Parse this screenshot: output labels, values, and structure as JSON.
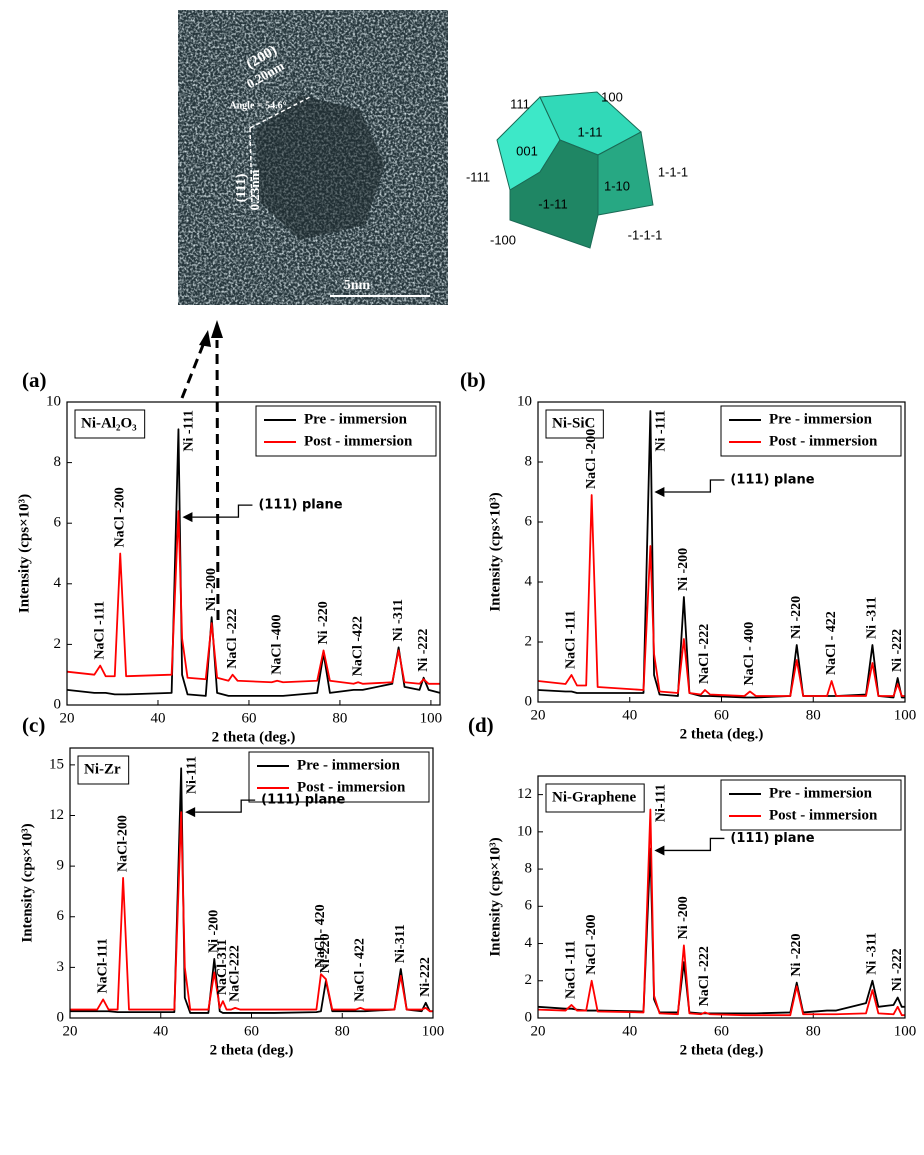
{
  "micrograph": {
    "labels": [
      "(200)",
      "0.20nm",
      "Angle = 54.6°",
      "(111)",
      "0.23nm",
      "5nm"
    ]
  },
  "crystal": {
    "faces": [
      "111",
      "100",
      "001",
      "1-11",
      "-111",
      "1-1-1",
      "-1-11",
      "1-10",
      "-100",
      "-1-1-1"
    ]
  },
  "chart_data": [
    {
      "type": "line",
      "panel": "(a)",
      "sample": "Ni-Al₂O₃",
      "x_label": "2 theta (deg.)",
      "y_label": "Intensity (cps×10³)",
      "legend": "upper right",
      "x": [
        20,
        26,
        27.3,
        28.5,
        30.5,
        31.7,
        33,
        43,
        44.5,
        45.3,
        46.5,
        50.5,
        51.8,
        53,
        55.5,
        56.4,
        57.5,
        65,
        66.2,
        67.5,
        75,
        76.4,
        77.8,
        83,
        84,
        85,
        91.5,
        92.9,
        94.2,
        97.5,
        98.4,
        99.5,
        102
      ],
      "series": [
        {
          "name": "Pre - immersion",
          "color": "#000000",
          "values": [
            0.5,
            0.4,
            0.4,
            0.4,
            0.35,
            0.35,
            0.35,
            0.4,
            9.1,
            1.0,
            0.35,
            0.3,
            2.9,
            0.4,
            0.3,
            0.3,
            0.3,
            0.3,
            0.3,
            0.3,
            0.4,
            1.7,
            0.4,
            0.5,
            0.5,
            0.5,
            0.7,
            1.9,
            0.6,
            0.5,
            0.9,
            0.5,
            0.4
          ]
        },
        {
          "name": "Post - immersion",
          "color": "#ff0000",
          "values": [
            1.1,
            1.0,
            1.3,
            0.95,
            0.95,
            5.0,
            0.95,
            1.0,
            6.4,
            2.2,
            0.9,
            0.85,
            2.7,
            0.9,
            0.8,
            1.0,
            0.8,
            0.75,
            0.8,
            0.75,
            0.8,
            1.8,
            0.8,
            0.7,
            0.75,
            0.7,
            0.75,
            1.8,
            0.75,
            0.7,
            0.85,
            0.7,
            0.7
          ]
        }
      ],
      "xlim": [
        20,
        102
      ],
      "xticks": [
        20,
        40,
        60,
        80,
        100
      ],
      "ylim": [
        0,
        10
      ],
      "yticks": [
        0,
        2,
        4,
        6,
        8,
        10
      ],
      "annotations": [
        {
          "text": "NaCl -111",
          "x": 27.3
        },
        {
          "text": "NaCl -200",
          "x": 31.7
        },
        {
          "text": "Ni -111",
          "x": 44.5
        },
        {
          "text": "Ni -200",
          "x": 51.8
        },
        {
          "text": "NaCl -222",
          "x": 56.4
        },
        {
          "text": "NaCl -400",
          "x": 66.2
        },
        {
          "text": "Ni -220",
          "x": 76.4
        },
        {
          "text": "NaCl -422",
          "x": 84
        },
        {
          "text": "Ni -311",
          "x": 92.9
        },
        {
          "text": "Ni -222",
          "x": 98.4
        }
      ],
      "callout": {
        "text": "(111) plane",
        "x": 44.5,
        "y": 6.2
      }
    },
    {
      "type": "line",
      "panel": "(b)",
      "sample": "Ni-SiC",
      "x_label": "2 theta (deg.)",
      "y_label": "Intensity (cps×10³)",
      "legend": "upper right",
      "x": [
        20,
        26,
        27.3,
        28.5,
        30.5,
        31.7,
        33,
        43,
        44.5,
        45.3,
        46.5,
        50.5,
        51.8,
        53,
        55.5,
        56.4,
        57.5,
        65,
        66.2,
        67.5,
        75,
        76.4,
        77.8,
        83,
        84,
        85,
        91.5,
        92.9,
        94.2,
        97.5,
        98.4,
        99.3,
        100
      ],
      "series": [
        {
          "name": "Pre - immersion",
          "color": "#000000",
          "values": [
            0.4,
            0.35,
            0.35,
            0.3,
            0.3,
            0.3,
            0.3,
            0.3,
            9.7,
            0.9,
            0.25,
            0.2,
            3.5,
            0.3,
            0.2,
            0.2,
            0.2,
            0.15,
            0.15,
            0.15,
            0.2,
            1.9,
            0.2,
            0.2,
            0.2,
            0.2,
            0.25,
            1.9,
            0.2,
            0.15,
            0.8,
            0.15,
            0.15
          ]
        },
        {
          "name": "Post - immersion",
          "color": "#ff0000",
          "values": [
            0.7,
            0.6,
            0.9,
            0.55,
            0.55,
            6.9,
            0.5,
            0.4,
            5.2,
            1.6,
            0.35,
            0.3,
            2.1,
            0.3,
            0.25,
            0.4,
            0.25,
            0.2,
            0.35,
            0.2,
            0.2,
            1.4,
            0.2,
            0.2,
            0.7,
            0.2,
            0.2,
            1.3,
            0.2,
            0.2,
            0.6,
            0.2,
            0.2
          ]
        }
      ],
      "xlim": [
        20,
        100
      ],
      "xticks": [
        20,
        40,
        60,
        80,
        100
      ],
      "ylim": [
        0,
        10
      ],
      "yticks": [
        0,
        2,
        4,
        6,
        8,
        10
      ],
      "annotations": [
        {
          "text": "NaCl -111",
          "x": 27.3
        },
        {
          "text": "NaCl -200",
          "x": 31.7
        },
        {
          "text": "Ni -111",
          "x": 44.5
        },
        {
          "text": "Ni -200",
          "x": 51.8
        },
        {
          "text": "NaCl -222",
          "x": 56.4
        },
        {
          "text": "NaCl - 400",
          "x": 66.2
        },
        {
          "text": "Ni -220",
          "x": 76.4
        },
        {
          "text": "NaCl - 422",
          "x": 84
        },
        {
          "text": "Ni -311",
          "x": 92.9
        },
        {
          "text": "Ni -222",
          "x": 98.4
        }
      ],
      "callout": {
        "text": "(111) plane",
        "x": 44.5,
        "y": 7.0
      }
    },
    {
      "type": "line",
      "panel": "(c)",
      "sample": "Ni-Zr",
      "x_label": "2 theta (deg.)",
      "y_label": "Intensity (cps×10³)",
      "legend": "upper right",
      "x": [
        20,
        26,
        27.3,
        28.5,
        30.5,
        31.7,
        33,
        43,
        44.5,
        45.3,
        46.5,
        50.5,
        51.8,
        53,
        53.7,
        54.5,
        55.5,
        56.4,
        57.5,
        65,
        74.3,
        75.3,
        76.4,
        77.8,
        83,
        84,
        85,
        91.5,
        92.9,
        94.2,
        97.5,
        98.4,
        99.3,
        100
      ],
      "series": [
        {
          "name": "Pre - immersion",
          "color": "#000000",
          "values": [
            0.4,
            0.4,
            0.4,
            0.4,
            0.35,
            0.35,
            0.35,
            0.35,
            14.8,
            1.2,
            0.3,
            0.3,
            3.5,
            0.4,
            0.3,
            0.3,
            0.3,
            0.3,
            0.3,
            0.3,
            0.35,
            0.4,
            2.2,
            0.4,
            0.4,
            0.4,
            0.4,
            0.5,
            2.9,
            0.5,
            0.4,
            0.9,
            0.4,
            0.4
          ]
        },
        {
          "name": "Post - immersion",
          "color": "#ff0000",
          "values": [
            0.5,
            0.5,
            1.1,
            0.5,
            0.5,
            8.3,
            0.5,
            0.5,
            12.2,
            3.0,
            0.5,
            0.5,
            2.7,
            0.6,
            1.0,
            0.5,
            0.5,
            0.6,
            0.5,
            0.5,
            0.5,
            2.6,
            2.3,
            0.5,
            0.5,
            0.6,
            0.5,
            0.5,
            2.5,
            0.5,
            0.5,
            0.6,
            0.4,
            0.4
          ]
        }
      ],
      "xlim": [
        20,
        100
      ],
      "xticks": [
        20,
        40,
        60,
        80,
        100
      ],
      "ylim": [
        0,
        16
      ],
      "yticks": [
        0,
        3,
        6,
        9,
        12,
        15
      ],
      "annotations": [
        {
          "text": "NaCl-111",
          "x": 27.3
        },
        {
          "text": "NaCl-200",
          "x": 31.7
        },
        {
          "text": "Ni-111",
          "x": 44.5
        },
        {
          "text": "Ni -200",
          "x": 51.8
        },
        {
          "text": "NaCl-311",
          "x": 53.7
        },
        {
          "text": "NaCl-222",
          "x": 56.4
        },
        {
          "text": "NaCl - 420",
          "x": 75.3
        },
        {
          "text": "Ni-220",
          "x": 76.4
        },
        {
          "text": "NaCl - 422",
          "x": 84
        },
        {
          "text": "Ni-311",
          "x": 92.9
        },
        {
          "text": "Ni-222",
          "x": 98.4
        }
      ],
      "callout": {
        "text": "(111) plane",
        "x": 44.5,
        "y": 12.2
      }
    },
    {
      "type": "line",
      "panel": "(d)",
      "sample": "Ni-Graphene",
      "x_label": "2 theta (deg.)",
      "y_label": "Intensity (cps×10³)",
      "legend": "upper right",
      "x": [
        20,
        26,
        27.3,
        28.5,
        30.5,
        31.7,
        33,
        43,
        44.5,
        45.3,
        46.5,
        50.5,
        51.8,
        53,
        55.5,
        56.4,
        57.5,
        65,
        66.2,
        67.5,
        75,
        76.4,
        77.8,
        83,
        84,
        85,
        91.5,
        92.9,
        94.2,
        97.5,
        98.4,
        99.3,
        100
      ],
      "series": [
        {
          "name": "Pre - immersion",
          "color": "#000000",
          "values": [
            0.6,
            0.5,
            0.5,
            0.45,
            0.4,
            0.4,
            0.4,
            0.35,
            9.1,
            1.0,
            0.3,
            0.3,
            3.0,
            0.3,
            0.25,
            0.25,
            0.25,
            0.25,
            0.25,
            0.25,
            0.3,
            1.9,
            0.3,
            0.4,
            0.4,
            0.4,
            0.8,
            2.0,
            0.6,
            0.7,
            1.1,
            0.6,
            0.6
          ]
        },
        {
          "name": "Post - immersion",
          "color": "#ff0000",
          "values": [
            0.45,
            0.4,
            0.7,
            0.4,
            0.4,
            2.0,
            0.35,
            0.3,
            11.2,
            1.2,
            0.25,
            0.2,
            3.9,
            0.25,
            0.2,
            0.3,
            0.2,
            0.15,
            0.15,
            0.15,
            0.15,
            1.7,
            0.2,
            0.2,
            0.2,
            0.2,
            0.25,
            1.5,
            0.25,
            0.2,
            0.6,
            0.15,
            0.15
          ]
        }
      ],
      "xlim": [
        20,
        100
      ],
      "xticks": [
        20,
        40,
        60,
        80,
        100
      ],
      "ylim": [
        0,
        13
      ],
      "yticks": [
        0,
        2,
        4,
        6,
        8,
        10,
        12
      ],
      "annotations": [
        {
          "text": "NaCl -111",
          "x": 27.3
        },
        {
          "text": "NaCl -200",
          "x": 31.7
        },
        {
          "text": "Ni-111",
          "x": 44.5
        },
        {
          "text": "Ni -200",
          "x": 51.8
        },
        {
          "text": "NaCl -222",
          "x": 56.4
        },
        {
          "text": "Ni -220",
          "x": 76.4
        },
        {
          "text": "Ni -311",
          "x": 92.9
        },
        {
          "text": "Ni -222",
          "x": 98.4
        }
      ],
      "callout": {
        "text": "(111) plane",
        "x": 44.5,
        "y": 9.0
      }
    }
  ]
}
